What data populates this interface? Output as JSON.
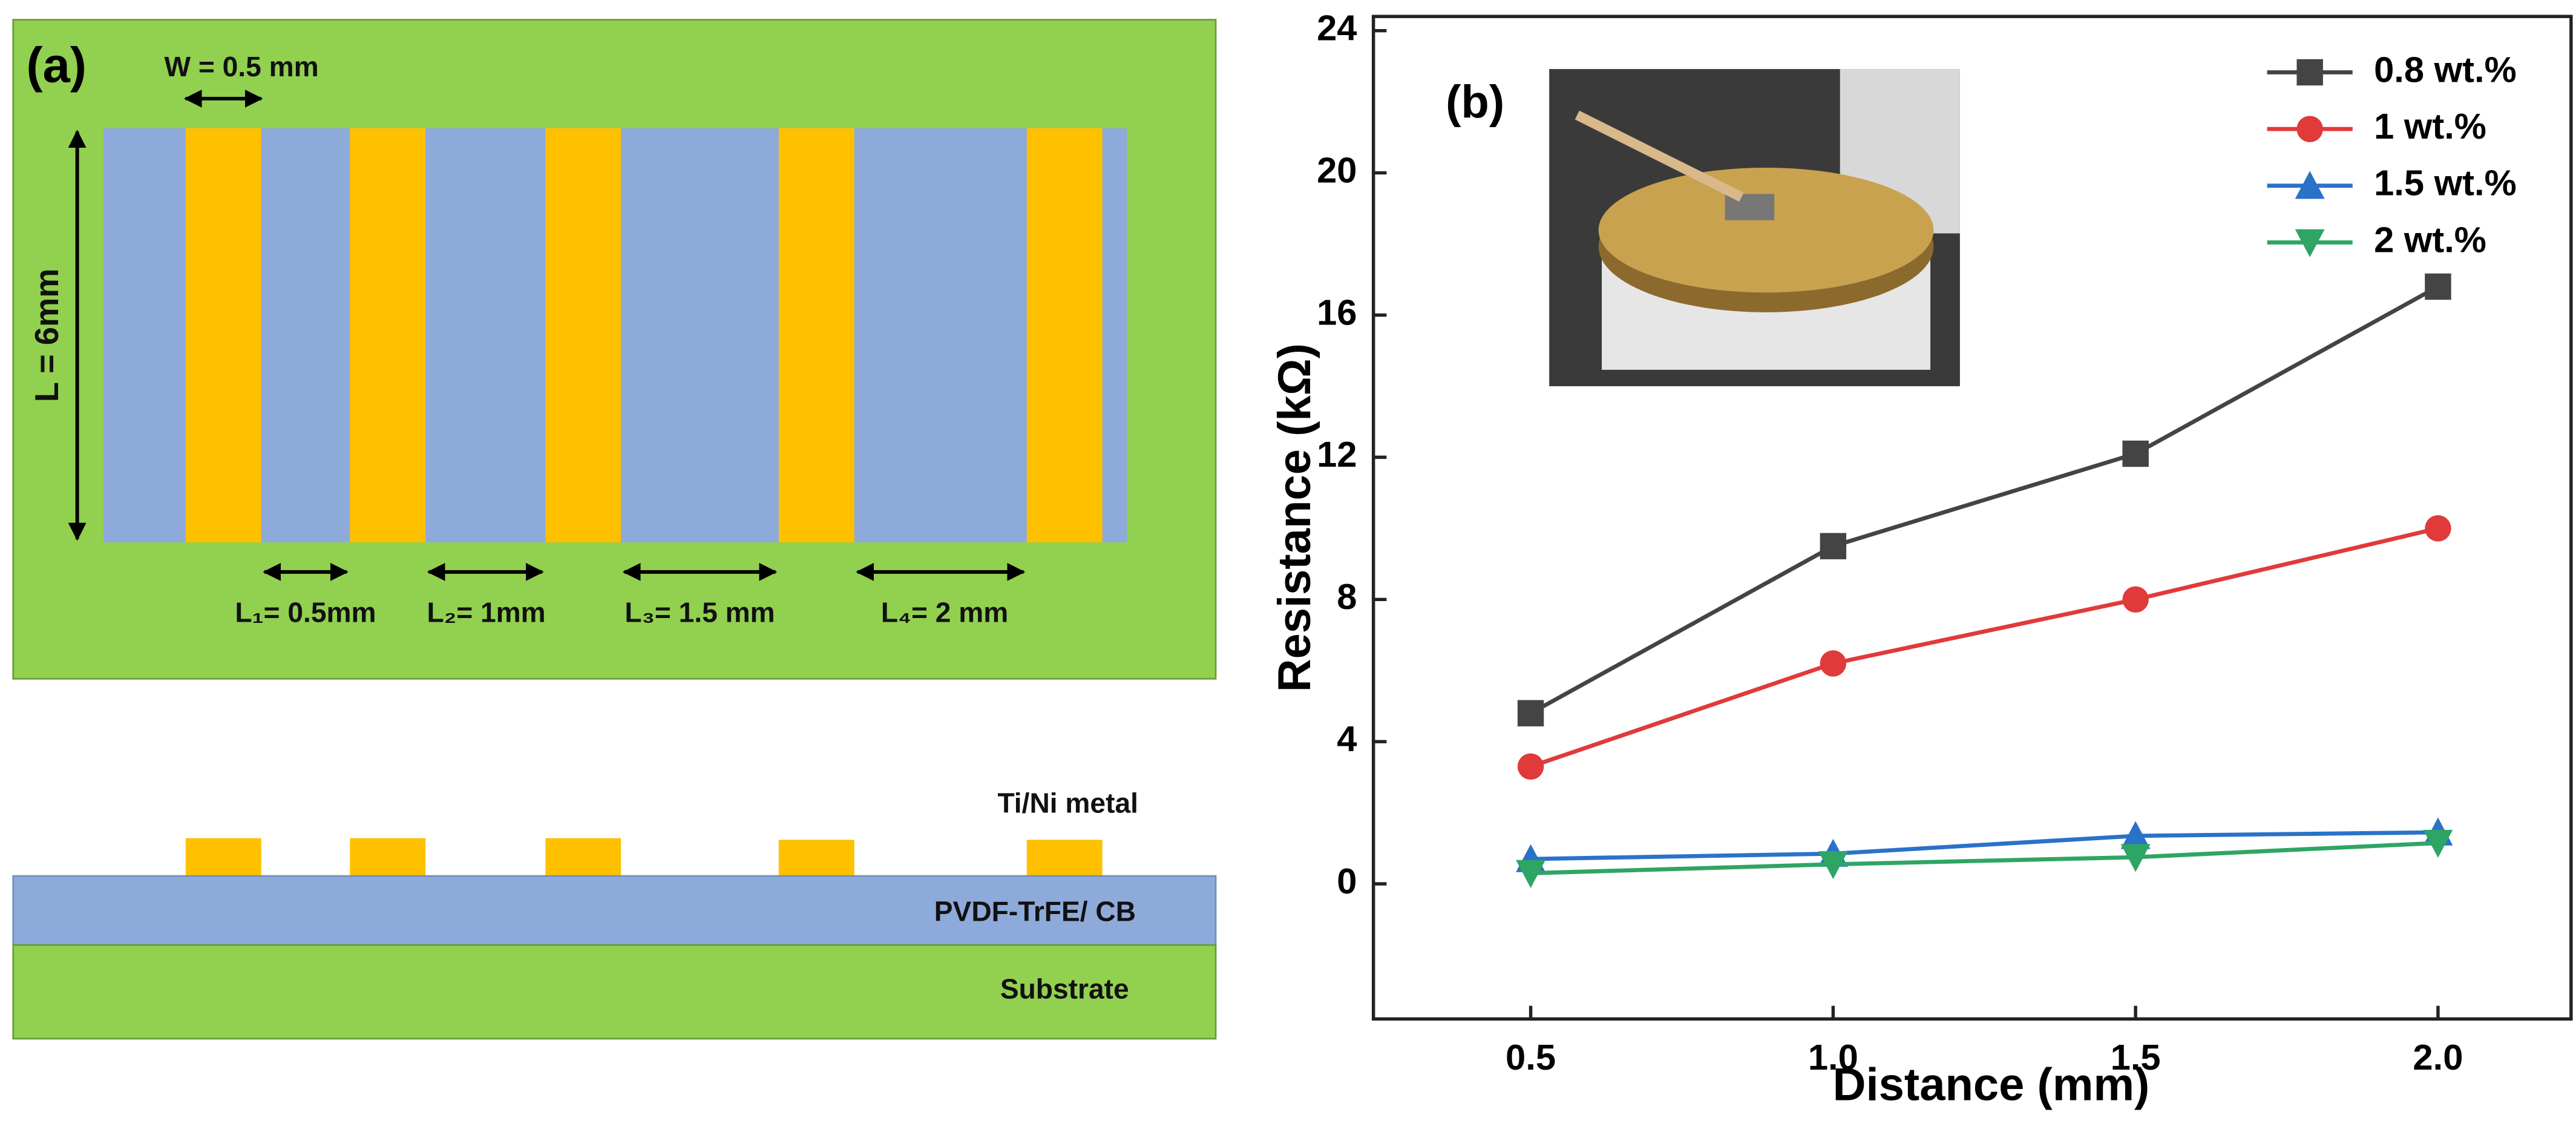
{
  "panel_a": {
    "label": "(a)",
    "width_label": "W = 0.5 mm",
    "length_label": "L = 6mm",
    "gap_labels": [
      "L₁= 0.5mm",
      "L₂= 1mm",
      "L₃= 1.5 mm",
      "L₄= 2 mm"
    ],
    "layers": [
      "Ti/Ni metal",
      "PVDF-TrFE/ CB",
      "Substrate"
    ]
  },
  "chart_data": {
    "type": "line",
    "panel_label": "(b)",
    "x_label": "Distance (mm)",
    "y_label": "Resistance (kΩ)",
    "x": [
      0.5,
      1,
      1.5,
      2
    ],
    "xlim": [
      0.24,
      2.22
    ],
    "xticks": [
      0.5,
      {
        "value": 1,
        "label": "1.0"
      },
      1.5,
      {
        "value": 2,
        "label": "2.0"
      }
    ],
    "ylim": [
      -3.8,
      24.4
    ],
    "yticks": [
      0,
      4,
      8,
      12,
      16,
      20,
      24
    ],
    "legend": "upper right",
    "series": [
      {
        "name": "0.8 wt.%",
        "color": "#444444",
        "marker": "square",
        "values": [
          4.8,
          9.5,
          12.1,
          16.8
        ]
      },
      {
        "name": "1 wt.%",
        "color": "#e03a3a",
        "marker": "circle",
        "values": [
          3.3,
          6.2,
          8.0,
          10.0
        ]
      },
      {
        "name": "1.5 wt.%",
        "color": "#2a72c8",
        "marker": "triangle-up",
        "values": [
          0.7,
          0.85,
          1.35,
          1.45
        ]
      },
      {
        "name": "2 wt.%",
        "color": "#2fa565",
        "marker": "triangle-down",
        "values": [
          0.3,
          0.55,
          0.75,
          1.15
        ]
      }
    ]
  }
}
